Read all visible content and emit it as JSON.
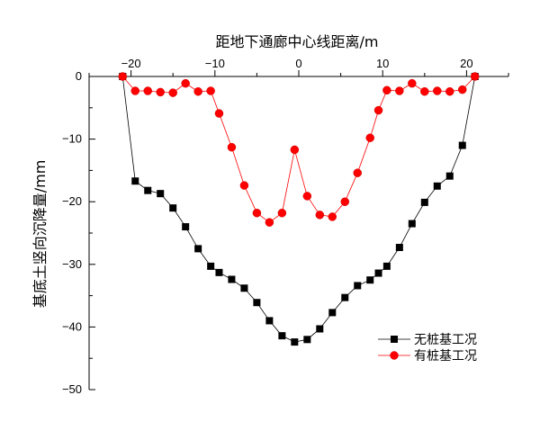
{
  "chart_data": {
    "type": "line",
    "xlabel": "距地下通廊中心线距离/m",
    "ylabel": "基底土竖向沉降量/mm",
    "xlim": [
      -25,
      25
    ],
    "ylim": [
      -50,
      0
    ],
    "x_ticks": [
      -20,
      -10,
      0,
      10,
      20
    ],
    "y_ticks": [
      0,
      -10,
      -20,
      -30,
      -40,
      -50
    ],
    "x_axis_position": "top",
    "grid": false,
    "legend_position": "bottom-right",
    "series": [
      {
        "name": "无桩基工况",
        "marker": "square",
        "color": "#000000",
        "x": [
          -21,
          -19.5,
          -18,
          -16.5,
          -15,
          -13.5,
          -12,
          -10.5,
          -9.5,
          -8,
          -6.5,
          -5,
          -3.5,
          -2,
          -0.5,
          1,
          2.5,
          4,
          5.5,
          7,
          8.5,
          9.5,
          10.5,
          12,
          13.5,
          15,
          16.5,
          18,
          19.5,
          21
        ],
        "y": [
          0,
          -16.7,
          -18.2,
          -18.7,
          -21,
          -24,
          -27.5,
          -30.3,
          -31.3,
          -32.4,
          -33.8,
          -36.1,
          -39,
          -41.4,
          -42.4,
          -42,
          -40.3,
          -37.7,
          -35.3,
          -33.4,
          -32.5,
          -31.4,
          -30.3,
          -27.3,
          -23.5,
          -20.1,
          -17.5,
          -15.9,
          -11,
          0
        ]
      },
      {
        "name": "有桩基工况",
        "marker": "circle",
        "color": "#ff0000",
        "x": [
          -21,
          -19.5,
          -18,
          -16.5,
          -15,
          -13.5,
          -12,
          -10.5,
          -9.5,
          -8,
          -6.5,
          -5,
          -3.5,
          -2,
          -0.5,
          1,
          2.5,
          4,
          5.5,
          7,
          8.5,
          9.5,
          10.5,
          12,
          13.5,
          15,
          16.5,
          18,
          19.5,
          21
        ],
        "y": [
          0,
          -2.3,
          -2.3,
          -2.5,
          -2.6,
          -1.1,
          -2.4,
          -2.3,
          -5.9,
          -11.3,
          -17.4,
          -21.8,
          -23.3,
          -21.8,
          -11.7,
          -19.1,
          -22.1,
          -22.4,
          -20,
          -15.4,
          -9.8,
          -5.4,
          -2.2,
          -2.3,
          -1.1,
          -2.4,
          -2.3,
          -2.4,
          -2.1,
          0
        ]
      }
    ]
  }
}
